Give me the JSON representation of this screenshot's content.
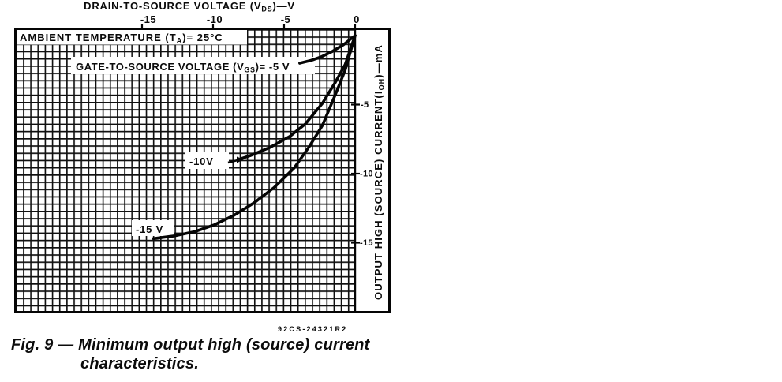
{
  "figure": {
    "part_code": "92CS-24321R2",
    "caption_line1": "Fig. 9 — Minimum output high (source) current",
    "caption_line2": "characteristics."
  },
  "chart_data": {
    "type": "line",
    "title": "Minimum output high (source) current characteristics",
    "xlabel": "DRAIN-TO-SOURCE VOLTAGE (VDS)—V",
    "ylabel": "OUTPUT HIGH (SOURCE) CURRENT (IOH)—mA",
    "x_axis": {
      "label_pre": "DRAIN-TO-SOURCE VOLTAGE (V",
      "label_sub": "DS",
      "label_post": ")—V",
      "position": "top",
      "tick_labels": [
        "-15",
        "-10",
        "-5",
        "0"
      ],
      "tick_values": [
        -15,
        -10,
        -5,
        0
      ],
      "range": [
        -24,
        0
      ]
    },
    "y_axis": {
      "label_pre": "OUTPUT  HIGH (SOURCE) CURRENT(I",
      "label_sub": "OH",
      "label_post": ")—mA",
      "position": "right",
      "tick_labels": [
        "-5",
        "-10",
        "-15"
      ],
      "tick_values": [
        -5,
        -10,
        -15
      ],
      "range": [
        -20.5,
        0.5
      ]
    },
    "grid": true,
    "legend_position": "none",
    "annotations": {
      "ambient_pre": "AMBIENT TEMPERATURE (T",
      "ambient_sub": "A",
      "ambient_post": ")= 25°C",
      "gate_pre": "GATE-TO-SOURCE VOLTAGE (V",
      "gate_sub": "GS",
      "gate_post": ")= -5 V",
      "curve_minus10_label": "-10V",
      "curve_minus15_label": "-15 V"
    },
    "series": [
      {
        "name": "VGS = -5 V",
        "points": [
          [
            -3.9,
            -2.0
          ],
          [
            -3.1,
            -1.8
          ],
          [
            -2.4,
            -1.55
          ],
          [
            -1.6,
            -1.15
          ],
          [
            -0.8,
            -0.65
          ],
          [
            0,
            0
          ]
        ]
      },
      {
        "name": "VGS = -10 V",
        "points": [
          [
            -8.0,
            -8.9
          ],
          [
            -7.4,
            -8.7
          ],
          [
            -6.0,
            -8.1
          ],
          [
            -4.6,
            -7.3
          ],
          [
            -3.5,
            -6.4
          ],
          [
            -2.3,
            -4.9
          ],
          [
            -1.4,
            -3.4
          ],
          [
            -0.7,
            -2.1
          ],
          [
            0,
            0
          ]
        ]
      },
      {
        "name": "VGS = -15 V",
        "points": [
          [
            -14.2,
            -14.7
          ],
          [
            -12.7,
            -14.5
          ],
          [
            -11.3,
            -14.2
          ],
          [
            -9.9,
            -13.7
          ],
          [
            -8.5,
            -13.0
          ],
          [
            -7.1,
            -12.1
          ],
          [
            -5.7,
            -11.0
          ],
          [
            -4.3,
            -9.6
          ],
          [
            -3.2,
            -8.0
          ],
          [
            -2.3,
            -6.5
          ],
          [
            -1.4,
            -4.3
          ],
          [
            -0.7,
            -2.5
          ],
          [
            0,
            0
          ]
        ]
      }
    ]
  }
}
